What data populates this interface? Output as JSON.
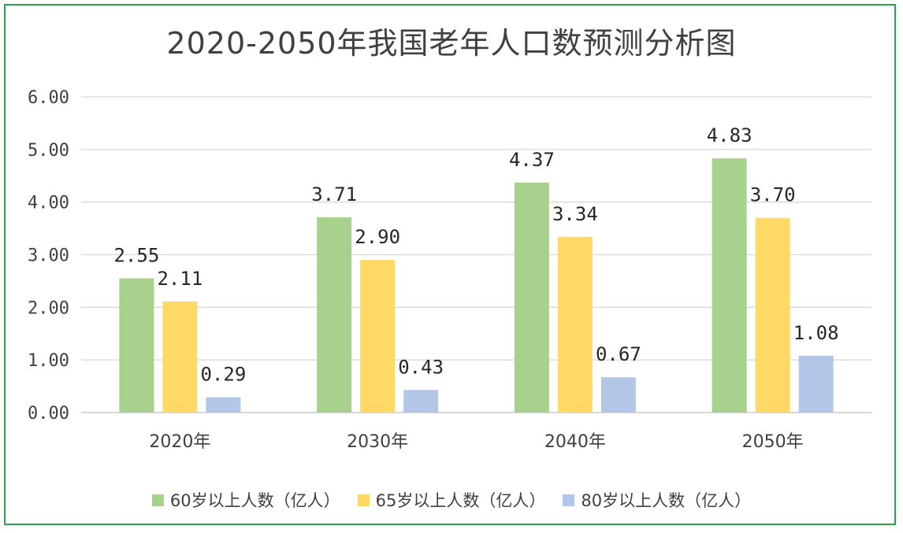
{
  "chart_data": {
    "type": "bar",
    "title": "2020-2050年我国老年人口数预测分析图",
    "categories": [
      "2020年",
      "2030年",
      "2040年",
      "2050年"
    ],
    "series": [
      {
        "name": "60岁以上人数（亿人）",
        "color": "#a9d18e",
        "values": [
          2.55,
          3.71,
          4.37,
          4.83
        ]
      },
      {
        "name": "65岁以上人数（亿人）",
        "color": "#ffd966",
        "values": [
          2.11,
          2.9,
          3.34,
          3.7
        ]
      },
      {
        "name": "80岁以上人数（亿人）",
        "color": "#b4c6e7",
        "values": [
          0.29,
          0.43,
          0.67,
          1.08
        ]
      }
    ],
    "y_ticks": [
      "0.00",
      "1.00",
      "2.00",
      "3.00",
      "4.00",
      "5.00",
      "6.00"
    ],
    "data_labels": [
      [
        "2.55",
        "3.71",
        "4.37",
        "4.83"
      ],
      [
        "2.11",
        "2.90",
        "3.34",
        "3.70"
      ],
      [
        "0.29",
        "0.43",
        "0.67",
        "1.08"
      ]
    ],
    "ylim": [
      0,
      6
    ],
    "grid": true,
    "legend_position": "bottom"
  }
}
